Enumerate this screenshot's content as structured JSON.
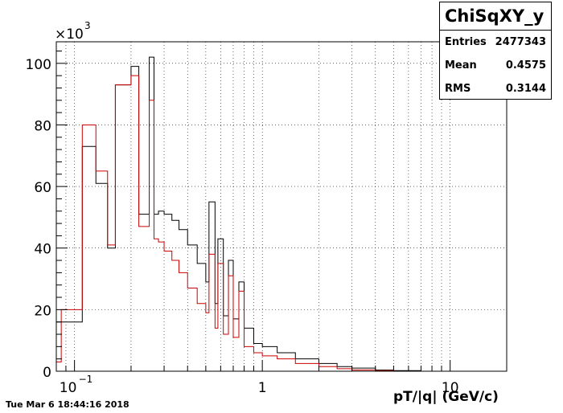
{
  "stats": {
    "title": "ChiSqXY_y",
    "entries_label": "Entries",
    "entries_value": "2477343",
    "mean_label": "Mean",
    "mean_value": "0.4575",
    "rms_label": "RMS",
    "rms_value": "0.3144"
  },
  "timestamp": "Tue Mar  6 18:44:16 2018",
  "chart_data": {
    "type": "histogram",
    "xlabel": "pT/|q| (GeV/c)",
    "ylabel": "",
    "x_scale": "log",
    "xlim": [
      0.08,
      20
    ],
    "ylim": [
      0,
      107000
    ],
    "y_multiplier_label": "×10",
    "y_multiplier_exp": "3",
    "y_ticks": [
      0,
      20000,
      40000,
      60000,
      80000,
      100000
    ],
    "y_tick_labels": [
      "0",
      "20",
      "40",
      "60",
      "80",
      "100"
    ],
    "x_major_ticks": [
      0.1,
      1,
      10
    ],
    "x_tick_labels": [
      "10",
      "1",
      "10"
    ],
    "x_tick_exp": "−1",
    "grid": true,
    "series": [
      {
        "color": "#000000",
        "bin_edges": [
          0.08,
          0.11,
          0.13,
          0.15,
          0.165,
          0.2,
          0.22,
          0.25,
          0.265,
          0.28,
          0.3,
          0.33,
          0.36,
          0.4,
          0.45,
          0.5,
          0.52,
          0.56,
          0.58,
          0.62,
          0.66,
          0.7,
          0.75,
          0.8,
          0.9,
          1.0,
          1.2,
          1.5,
          2.0,
          2.5,
          3.0,
          4.0,
          5.0,
          7.0,
          10.0,
          20.0
        ],
        "values": [
          16000,
          73000,
          61000,
          40000,
          93000,
          99000,
          51000,
          102000,
          51000,
          52000,
          51000,
          49000,
          46000,
          41000,
          35000,
          29000,
          55000,
          22000,
          43000,
          18000,
          36000,
          17000,
          29000,
          14000,
          9000,
          8000,
          6000,
          4000,
          2500,
          1500,
          1000,
          400,
          200,
          0,
          0
        ]
      },
      {
        "color": "#cc0000",
        "bin_edges": [
          0.08,
          0.085,
          0.11,
          0.13,
          0.15,
          0.165,
          0.2,
          0.22,
          0.25,
          0.265,
          0.28,
          0.3,
          0.33,
          0.36,
          0.4,
          0.45,
          0.5,
          0.52,
          0.56,
          0.58,
          0.62,
          0.66,
          0.7,
          0.75,
          0.8,
          0.9,
          1.0,
          1.2,
          1.5,
          2.0,
          2.5,
          3.0,
          4.0,
          5.0,
          7.0,
          10.0,
          20.0
        ],
        "values": [
          3000,
          20000,
          80000,
          65000,
          41000,
          93000,
          96000,
          47000,
          88000,
          43000,
          42000,
          39000,
          36000,
          32000,
          27000,
          22000,
          19000,
          38000,
          14000,
          35000,
          12000,
          31000,
          11000,
          26000,
          8000,
          6000,
          5000,
          4000,
          2500,
          1500,
          800,
          400,
          200,
          0,
          0,
          0
        ]
      }
    ]
  }
}
